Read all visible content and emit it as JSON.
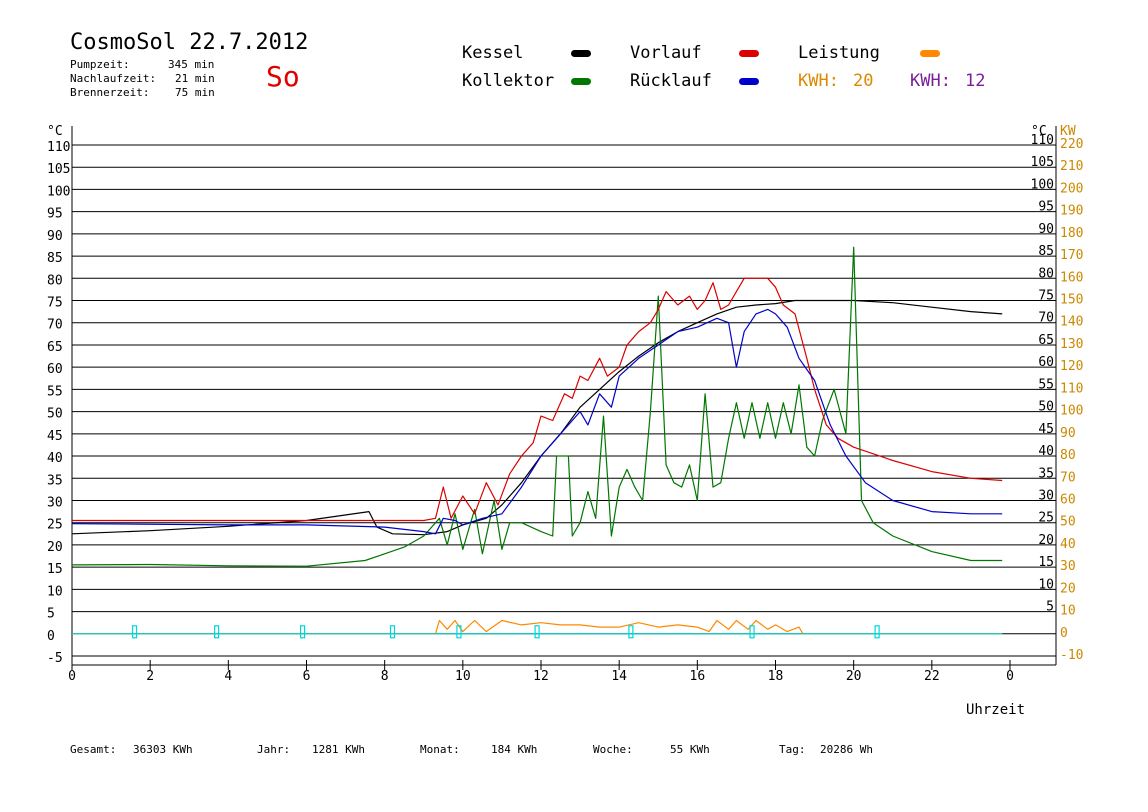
{
  "header": {
    "title": "CosmoSol 22.7.2012",
    "day_label": "So",
    "info": [
      {
        "label": "Pumpzeit:",
        "value": "345 min"
      },
      {
        "label": "Nachlaufzeit:",
        "value": "21 min"
      },
      {
        "label": "Brennerzeit:",
        "value": "75 min"
      }
    ]
  },
  "legend": {
    "kessel": {
      "label": "Kessel",
      "color": "#000000"
    },
    "kollektor": {
      "label": "Kollektor",
      "color": "#007700"
    },
    "vorlauf": {
      "label": "Vorlauf",
      "color": "#dd0000"
    },
    "ruecklauf": {
      "label": "Rücklauf",
      "color": "#0000cc"
    },
    "leistung": {
      "label": "Leistung",
      "color": "#ff8800"
    },
    "kwh1": {
      "label": "KWH:",
      "value": "20",
      "color": "#dd8800"
    },
    "kwh2": {
      "label": "KWH:",
      "value": "12",
      "color": "#7a1f9a"
    }
  },
  "footer": [
    {
      "label": "Gesamt:",
      "value": "36303 KWh"
    },
    {
      "label": "Jahr:",
      "value": "1281 KWh"
    },
    {
      "label": "Monat:",
      "value": "184 KWh"
    },
    {
      "label": "Woche:",
      "value": "55 KWh"
    },
    {
      "label": "Tag:",
      "value": "20286 Wh"
    }
  ],
  "chart_data": {
    "type": "line",
    "xlabel": "Uhrzeit",
    "ylabel_left": "°C",
    "ylabel_right_1": "°C",
    "ylabel_right_2": "KW",
    "xlim": [
      0,
      24
    ],
    "ylim": [
      -5,
      110
    ],
    "x_ticks": [
      "0",
      "2",
      "4",
      "6",
      "8",
      "10",
      "12",
      "14",
      "16",
      "18",
      "20",
      "22",
      "0"
    ],
    "y_ticks_left": [
      "-5",
      "0",
      "5",
      "10",
      "15",
      "20",
      "25",
      "30",
      "35",
      "40",
      "45",
      "50",
      "55",
      "60",
      "65",
      "70",
      "75",
      "80",
      "85",
      "90",
      "95",
      "100",
      "105",
      "110"
    ],
    "y_ticks_right_temp": [
      "5",
      "10",
      "15",
      "20",
      "25",
      "30",
      "35",
      "40",
      "45",
      "50",
      "55",
      "60",
      "65",
      "70",
      "75",
      "80",
      "85",
      "90",
      "95",
      "100",
      "105",
      "110"
    ],
    "y_ticks_right_kw": [
      "-10",
      "0",
      "10",
      "20",
      "30",
      "40",
      "50",
      "60",
      "70",
      "80",
      "90",
      "100",
      "110",
      "120",
      "130",
      "140",
      "150",
      "160",
      "170",
      "180",
      "190",
      "200",
      "210",
      "220"
    ],
    "grid": true,
    "series": [
      {
        "name": "Kessel",
        "color": "#000000",
        "points": [
          [
            0,
            22.5
          ],
          [
            2,
            23.2
          ],
          [
            4,
            24.2
          ],
          [
            6,
            25.5
          ],
          [
            7.6,
            27.5
          ],
          [
            7.8,
            24
          ],
          [
            8.2,
            22.5
          ],
          [
            9,
            22.3
          ],
          [
            9.6,
            23
          ],
          [
            10,
            24.5
          ],
          [
            10.6,
            26
          ],
          [
            11,
            29
          ],
          [
            11.5,
            34
          ],
          [
            12,
            40
          ],
          [
            12.5,
            45
          ],
          [
            13,
            51
          ],
          [
            13.5,
            55
          ],
          [
            14,
            59
          ],
          [
            14.5,
            62.5
          ],
          [
            15,
            65.5
          ],
          [
            15.5,
            68
          ],
          [
            16,
            70
          ],
          [
            16.5,
            72
          ],
          [
            17,
            73.5
          ],
          [
            17.5,
            74
          ],
          [
            18,
            74.3
          ],
          [
            18.5,
            75
          ],
          [
            19,
            75
          ],
          [
            19.5,
            75
          ],
          [
            20,
            75
          ],
          [
            21,
            74.5
          ],
          [
            22,
            73.5
          ],
          [
            23,
            72.5
          ],
          [
            23.8,
            72
          ]
        ]
      },
      {
        "name": "Kollektor",
        "color": "#007700",
        "points": [
          [
            0,
            15.5
          ],
          [
            2,
            15.6
          ],
          [
            4,
            15.3
          ],
          [
            6,
            15.2
          ],
          [
            7.5,
            16.5
          ],
          [
            8,
            18
          ],
          [
            8.5,
            19.5
          ],
          [
            9,
            22
          ],
          [
            9.4,
            26
          ],
          [
            9.6,
            20
          ],
          [
            9.8,
            27
          ],
          [
            10,
            19
          ],
          [
            10.3,
            28
          ],
          [
            10.5,
            18
          ],
          [
            10.8,
            30
          ],
          [
            11,
            19
          ],
          [
            11.2,
            25
          ],
          [
            11.5,
            25
          ],
          [
            12,
            23
          ],
          [
            12.3,
            22
          ],
          [
            12.4,
            40
          ],
          [
            12.7,
            40
          ],
          [
            12.8,
            22
          ],
          [
            13,
            25
          ],
          [
            13.2,
            32
          ],
          [
            13.4,
            26
          ],
          [
            13.6,
            49
          ],
          [
            13.8,
            22
          ],
          [
            14,
            33
          ],
          [
            14.2,
            37
          ],
          [
            14.4,
            33
          ],
          [
            14.6,
            30
          ],
          [
            14.8,
            50
          ],
          [
            15,
            76
          ],
          [
            15.2,
            38
          ],
          [
            15.4,
            34
          ],
          [
            15.6,
            33
          ],
          [
            15.8,
            38
          ],
          [
            16,
            30
          ],
          [
            16.2,
            54
          ],
          [
            16.4,
            33
          ],
          [
            16.6,
            34
          ],
          [
            16.8,
            44
          ],
          [
            17,
            52
          ],
          [
            17.2,
            44
          ],
          [
            17.4,
            52
          ],
          [
            17.6,
            44
          ],
          [
            17.8,
            52
          ],
          [
            18,
            44
          ],
          [
            18.2,
            52
          ],
          [
            18.4,
            45
          ],
          [
            18.6,
            56
          ],
          [
            18.8,
            42
          ],
          [
            19,
            40
          ],
          [
            19.2,
            48
          ],
          [
            19.5,
            55
          ],
          [
            19.8,
            45
          ],
          [
            20,
            87
          ],
          [
            20.2,
            30
          ],
          [
            20.5,
            25
          ],
          [
            21,
            22
          ],
          [
            22,
            18.5
          ],
          [
            23,
            16.5
          ],
          [
            23.8,
            16.5
          ]
        ]
      },
      {
        "name": "Vorlauf",
        "color": "#dd0000",
        "points": [
          [
            0,
            25.5
          ],
          [
            4,
            25.5
          ],
          [
            8,
            25.5
          ],
          [
            9,
            25.5
          ],
          [
            9.3,
            26
          ],
          [
            9.5,
            33
          ],
          [
            9.7,
            26
          ],
          [
            10,
            31
          ],
          [
            10.3,
            27
          ],
          [
            10.6,
            34
          ],
          [
            10.9,
            29
          ],
          [
            11.2,
            36
          ],
          [
            11.5,
            40
          ],
          [
            11.8,
            43
          ],
          [
            12,
            49
          ],
          [
            12.3,
            48
          ],
          [
            12.6,
            54
          ],
          [
            12.8,
            53
          ],
          [
            13,
            58
          ],
          [
            13.2,
            57
          ],
          [
            13.5,
            62
          ],
          [
            13.7,
            58
          ],
          [
            14,
            60
          ],
          [
            14.2,
            65
          ],
          [
            14.5,
            68
          ],
          [
            14.8,
            70
          ],
          [
            15,
            73
          ],
          [
            15.2,
            77
          ],
          [
            15.5,
            74
          ],
          [
            15.8,
            76
          ],
          [
            16,
            73
          ],
          [
            16.2,
            75
          ],
          [
            16.4,
            79
          ],
          [
            16.6,
            73
          ],
          [
            16.8,
            74
          ],
          [
            17,
            77
          ],
          [
            17.2,
            80
          ],
          [
            17.5,
            80
          ],
          [
            17.8,
            80
          ],
          [
            18,
            78
          ],
          [
            18.2,
            74
          ],
          [
            18.5,
            72
          ],
          [
            18.8,
            62
          ],
          [
            19,
            55
          ],
          [
            19.3,
            47
          ],
          [
            19.6,
            44
          ],
          [
            20,
            42
          ],
          [
            21,
            39
          ],
          [
            22,
            36.5
          ],
          [
            23,
            35
          ],
          [
            23.8,
            34.5
          ]
        ]
      },
      {
        "name": "Rücklauf",
        "color": "#0000cc",
        "points": [
          [
            0,
            24.8
          ],
          [
            4,
            24.5
          ],
          [
            6,
            24.5
          ],
          [
            8,
            24
          ],
          [
            9,
            23
          ],
          [
            9.3,
            22.5
          ],
          [
            9.5,
            26
          ],
          [
            9.8,
            25.5
          ],
          [
            10,
            24.5
          ],
          [
            10.5,
            26
          ],
          [
            11,
            27
          ],
          [
            11.5,
            33
          ],
          [
            12,
            40
          ],
          [
            12.5,
            45
          ],
          [
            13,
            50
          ],
          [
            13.2,
            47
          ],
          [
            13.5,
            54
          ],
          [
            13.8,
            51
          ],
          [
            14,
            58
          ],
          [
            14.5,
            62
          ],
          [
            15,
            65
          ],
          [
            15.5,
            68
          ],
          [
            16,
            69
          ],
          [
            16.5,
            71
          ],
          [
            16.8,
            70
          ],
          [
            17,
            60
          ],
          [
            17.2,
            68
          ],
          [
            17.5,
            72
          ],
          [
            17.8,
            73
          ],
          [
            18,
            72
          ],
          [
            18.3,
            69
          ],
          [
            18.6,
            62
          ],
          [
            19,
            57
          ],
          [
            19.4,
            47
          ],
          [
            19.8,
            40
          ],
          [
            20.3,
            34
          ],
          [
            21,
            30
          ],
          [
            22,
            27.5
          ],
          [
            23,
            27
          ],
          [
            23.8,
            27
          ]
        ]
      },
      {
        "name": "Leistung",
        "color": "#ff8800",
        "points": [
          [
            0,
            0
          ],
          [
            9.3,
            0
          ],
          [
            9.4,
            3
          ],
          [
            9.6,
            1
          ],
          [
            9.8,
            3
          ],
          [
            10,
            0.5
          ],
          [
            10.3,
            3
          ],
          [
            10.6,
            0.5
          ],
          [
            11,
            3
          ],
          [
            11.5,
            2
          ],
          [
            12,
            2.5
          ],
          [
            12.5,
            2
          ],
          [
            13,
            2
          ],
          [
            13.5,
            1.5
          ],
          [
            14,
            1.5
          ],
          [
            14.5,
            2.5
          ],
          [
            15,
            1.5
          ],
          [
            15.5,
            2
          ],
          [
            16,
            1.5
          ],
          [
            16.3,
            0.5
          ],
          [
            16.5,
            3
          ],
          [
            16.8,
            1
          ],
          [
            17,
            3
          ],
          [
            17.3,
            1
          ],
          [
            17.5,
            3
          ],
          [
            17.8,
            1
          ],
          [
            18,
            2
          ],
          [
            18.3,
            0.5
          ],
          [
            18.6,
            1.5
          ],
          [
            18.7,
            0
          ],
          [
            23.8,
            0
          ]
        ]
      },
      {
        "name": "Pumpe",
        "color": "#00d8d8",
        "points": [
          [
            0,
            0
          ],
          [
            23.8,
            0
          ]
        ]
      }
    ]
  }
}
